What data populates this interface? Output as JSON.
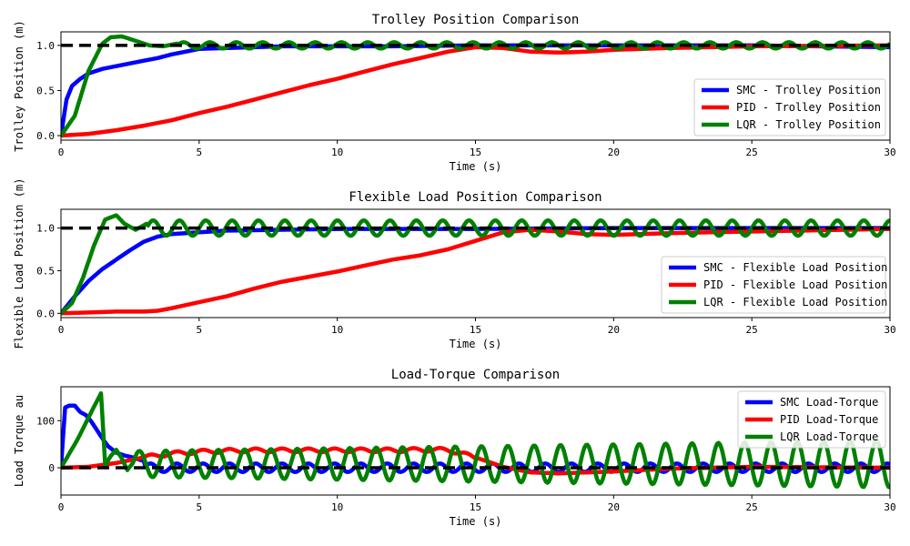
{
  "chart_data": [
    {
      "type": "line",
      "title": "Trolley Position Comparison",
      "xlabel": "Time (s)",
      "ylabel": "Trolley Position (m)",
      "xlim": [
        0,
        30
      ],
      "ylim": [
        -0.05,
        1.15
      ],
      "xticks": [
        0,
        5,
        10,
        15,
        20,
        25,
        30
      ],
      "yticks": [
        0.0,
        0.5,
        1.0
      ],
      "ytick_labels": [
        "0.0",
        "0.5",
        "1.0"
      ],
      "grid": false,
      "legend_position": "lower-right",
      "reference": {
        "value": 1.0,
        "style": "dashed",
        "color": "#000000"
      },
      "series": [
        {
          "name": "SMC - Trolley Position",
          "color": "#0000ff",
          "x": [
            0,
            0.2,
            0.4,
            0.7,
            1.0,
            1.5,
            2.0,
            2.5,
            3.0,
            3.5,
            4.0,
            4.5,
            5.0,
            6.0,
            7.0,
            8.0,
            10.0,
            12.0,
            15.0,
            18.0,
            20.0,
            25.0,
            30.0
          ],
          "y": [
            0.0,
            0.4,
            0.55,
            0.63,
            0.69,
            0.74,
            0.77,
            0.8,
            0.83,
            0.86,
            0.9,
            0.93,
            0.96,
            0.97,
            0.98,
            0.99,
            0.99,
            0.99,
            1.0,
            1.0,
            1.0,
            1.0,
            0.98
          ]
        },
        {
          "name": "PID - Trolley Position",
          "color": "#ff0000",
          "x": [
            0,
            1,
            2,
            3,
            4,
            5,
            6,
            7,
            8,
            9,
            10,
            11,
            12,
            13,
            14,
            15,
            16,
            17,
            18,
            19,
            20,
            22,
            25,
            30
          ],
          "y": [
            0.0,
            0.02,
            0.06,
            0.11,
            0.17,
            0.25,
            0.32,
            0.4,
            0.48,
            0.56,
            0.63,
            0.71,
            0.79,
            0.86,
            0.93,
            0.98,
            0.97,
            0.93,
            0.92,
            0.93,
            0.95,
            0.97,
            0.99,
            1.0
          ]
        },
        {
          "name": "LQR - Trolley Position",
          "color": "#008000",
          "x": [
            0,
            0.5,
            1.0,
            1.5,
            1.8,
            2.2,
            2.7,
            3.2,
            3.7,
            4.2
          ],
          "y": [
            0.0,
            0.22,
            0.72,
            1.02,
            1.09,
            1.1,
            1.05,
            1.0,
            0.99,
            1.02
          ],
          "osc": {
            "from": 4.2,
            "to": 30,
            "center": 1.0,
            "amplitude": 0.035,
            "freq": 1.05
          }
        }
      ]
    },
    {
      "type": "line",
      "title": "Flexible Load Position Comparison",
      "xlabel": "Time (s)",
      "ylabel": "Flexible Load Position (m)",
      "xlim": [
        0,
        30
      ],
      "ylim": [
        -0.05,
        1.22
      ],
      "xticks": [
        0,
        5,
        10,
        15,
        20,
        25,
        30
      ],
      "yticks": [
        0.0,
        0.5,
        1.0
      ],
      "ytick_labels": [
        "0.0",
        "0.5",
        "1.0"
      ],
      "grid": false,
      "legend_position": "lower-right",
      "reference": {
        "value": 1.0,
        "style": "dashed",
        "color": "#000000"
      },
      "series": [
        {
          "name": "SMC - Flexible Load Position",
          "color": "#0000ff",
          "x": [
            0,
            0.5,
            1.0,
            1.5,
            2.0,
            2.5,
            3.0,
            3.5,
            4.0,
            4.5,
            5.0,
            6.0,
            8.0,
            10.0,
            15.0,
            20.0,
            25.0,
            30.0
          ],
          "y": [
            0.0,
            0.2,
            0.38,
            0.52,
            0.63,
            0.74,
            0.84,
            0.9,
            0.93,
            0.94,
            0.95,
            0.97,
            0.98,
            0.99,
            0.99,
            1.0,
            1.0,
            1.0
          ]
        },
        {
          "name": "PID - Flexible Load Position",
          "color": "#ff0000",
          "x": [
            0,
            1,
            2,
            3,
            3.5,
            4,
            5,
            6,
            7,
            8,
            9,
            10,
            11,
            12,
            13,
            14,
            15,
            16,
            17,
            18,
            19,
            20,
            22,
            25,
            30
          ],
          "y": [
            0.0,
            0.01,
            0.02,
            0.02,
            0.03,
            0.06,
            0.13,
            0.2,
            0.29,
            0.37,
            0.43,
            0.49,
            0.56,
            0.63,
            0.68,
            0.75,
            0.85,
            0.95,
            0.98,
            0.96,
            0.93,
            0.92,
            0.94,
            0.96,
            0.99
          ]
        },
        {
          "name": "LQR - Flexible Load Position",
          "color": "#008000",
          "x": [
            0,
            0.4,
            0.8,
            1.2,
            1.6,
            2.0,
            2.3,
            2.7,
            3.1
          ],
          "y": [
            0.0,
            0.12,
            0.42,
            0.8,
            1.1,
            1.15,
            1.05,
            0.98,
            1.05
          ],
          "osc": {
            "from": 3.1,
            "to": 30,
            "center": 1.0,
            "amplitude": 0.09,
            "freq": 1.05
          }
        }
      ]
    },
    {
      "type": "line",
      "title": "Load-Torque Comparison",
      "xlabel": "Time (s)",
      "ylabel": "Load Torque au",
      "xlim": [
        0,
        30
      ],
      "ylim": [
        -58,
        172
      ],
      "xticks": [
        0,
        5,
        10,
        15,
        20,
        25,
        30
      ],
      "yticks": [
        0,
        100
      ],
      "ytick_labels": [
        "0",
        "100"
      ],
      "grid": false,
      "legend_position": "upper-right",
      "reference": {
        "value": 0,
        "style": "dashed",
        "color": "#000000"
      },
      "series": [
        {
          "name": "SMC Load-Torque",
          "color": "#0000ff",
          "x": [
            0,
            0.15,
            0.3,
            0.5,
            0.7,
            0.9,
            1.1,
            1.3,
            1.5,
            1.7,
            2.0,
            2.3,
            2.6,
            3.0
          ],
          "y": [
            0,
            128,
            132,
            132,
            118,
            112,
            98,
            80,
            62,
            46,
            32,
            26,
            22,
            14
          ],
          "osc": {
            "from": 3.0,
            "to": 30,
            "center": 0,
            "amplitude": 9,
            "freq": 1.05
          }
        },
        {
          "name": "PID Load-Torque",
          "color": "#ff0000",
          "x": [
            0,
            1,
            2,
            3,
            4,
            5,
            6,
            7,
            8,
            9,
            10,
            11,
            12,
            13,
            14,
            15,
            16,
            17,
            18,
            20,
            22,
            25,
            30
          ],
          "y": [
            0,
            2,
            10,
            22,
            30,
            34,
            36,
            37,
            37,
            37,
            37,
            37,
            37,
            38,
            38,
            22,
            2,
            -10,
            -12,
            -8,
            -2,
            2,
            0
          ],
          "osc": {
            "from": 3.0,
            "to": 15,
            "center": 0,
            "amplitude": 4,
            "freq": 1.05
          }
        },
        {
          "name": "LQR Load-Torque",
          "color": "#008000",
          "x": [
            0,
            0.3,
            0.6,
            0.9,
            1.2,
            1.45,
            1.6,
            1.8,
            2.0,
            2.2,
            2.4,
            2.6
          ],
          "y": [
            0,
            30,
            60,
            95,
            130,
            158,
            5,
            25,
            38,
            20,
            -5,
            10
          ],
          "osc": {
            "from": 2.6,
            "to": 30,
            "center": 8,
            "amplitude": 50,
            "freq": 1.05,
            "grow": 0.45
          }
        }
      ]
    }
  ]
}
